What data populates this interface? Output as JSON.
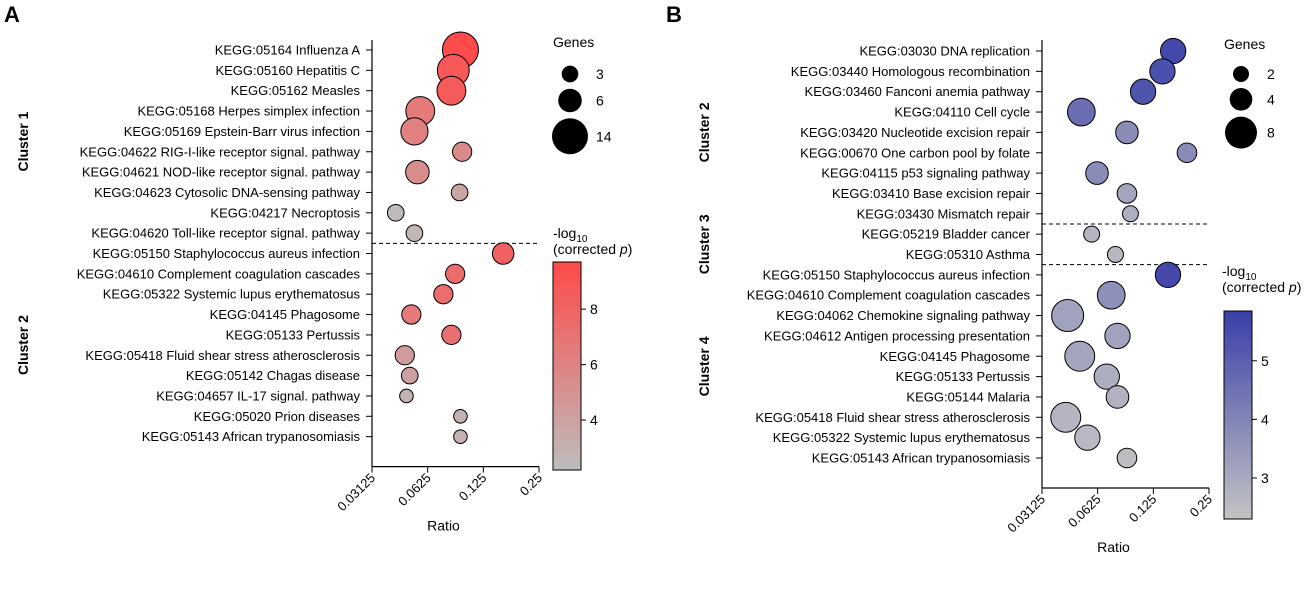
{
  "chart_data": [
    {
      "type": "scatter",
      "panel": "A",
      "xlabel": "Ratio",
      "x_scale": "log2",
      "xticks": [
        "0.03125",
        "0.0625",
        "0.125",
        "0.25"
      ],
      "xtick_values": [
        0.03125,
        0.0625,
        0.125,
        0.25
      ],
      "xlim": [
        0.03125,
        0.25
      ],
      "size_legend": {
        "title": "Genes",
        "values": [
          3,
          6,
          14
        ],
        "labels": [
          "3",
          "6",
          "14"
        ]
      },
      "color_legend": {
        "title_prefix": "-log",
        "title_sub": "10",
        "title_line2_prefix": "(corrected ",
        "title_line2_italic": "p",
        "title_line2_suffix": ")",
        "min": 2.2,
        "max": 9.7,
        "ticks": [
          4,
          6,
          8
        ],
        "tick_labels": [
          "4",
          "6",
          "8"
        ],
        "low_color": "#bdbdbd",
        "high_color": "#ff4a4a"
      },
      "clusters": [
        {
          "name": "Cluster 1",
          "terms": [
            {
              "label": "KEGG:05164 Influenza A",
              "ratio": 0.094,
              "genes": 14,
              "neglog10p": 9.6
            },
            {
              "label": "KEGG:05160 Hepatitis C",
              "ratio": 0.086,
              "genes": 11,
              "neglog10p": 8.8
            },
            {
              "label": "KEGG:05162 Measles",
              "ratio": 0.084,
              "genes": 9,
              "neglog10p": 8.6
            },
            {
              "label": "KEGG:05168 Herpes simplex infection",
              "ratio": 0.057,
              "genes": 9,
              "neglog10p": 6.6
            },
            {
              "label": "KEGG:05169 Epstein-Barr virus infection",
              "ratio": 0.053,
              "genes": 8,
              "neglog10p": 6.2
            },
            {
              "label": "KEGG:04622 RIG-I-like receptor signal. pathway",
              "ratio": 0.096,
              "genes": 4,
              "neglog10p": 5.5
            },
            {
              "label": "KEGG:04621 NOD-like receptor signal. pathway",
              "ratio": 0.055,
              "genes": 6,
              "neglog10p": 5.3
            },
            {
              "label": "KEGG:04623 Cytosolic DNA-sensing pathway",
              "ratio": 0.093,
              "genes": 3,
              "neglog10p": 3.8
            },
            {
              "label": "KEGG:04217 Necroptosis",
              "ratio": 0.042,
              "genes": 3,
              "neglog10p": 2.4
            },
            {
              "label": "KEGG:04620 Toll-like receptor signal. pathway",
              "ratio": 0.053,
              "genes": 3,
              "neglog10p": 2.6
            }
          ]
        },
        {
          "name": "Cluster 2",
          "terms": [
            {
              "label": "KEGG:05150 Staphylococcus aureus infection",
              "ratio": 0.16,
              "genes": 5,
              "neglog10p": 8.2
            },
            {
              "label": "KEGG:04610 Complement coagulation cascades",
              "ratio": 0.088,
              "genes": 4,
              "neglog10p": 7.5
            },
            {
              "label": "KEGG:05322 Systemic lupus erythematosus",
              "ratio": 0.076,
              "genes": 4,
              "neglog10p": 7.4
            },
            {
              "label": "KEGG:04145 Phagosome",
              "ratio": 0.051,
              "genes": 4,
              "neglog10p": 6.6
            },
            {
              "label": "KEGG:05133 Pertussis",
              "ratio": 0.084,
              "genes": 4,
              "neglog10p": 7.2
            },
            {
              "label": "KEGG:05418 Fluid shear stress atherosclerosis",
              "ratio": 0.047,
              "genes": 4,
              "neglog10p": 4.4
            },
            {
              "label": "KEGG:05142 Chagas disease",
              "ratio": 0.05,
              "genes": 3,
              "neglog10p": 4.0
            },
            {
              "label": "KEGG:04657 IL-17 signal. pathway",
              "ratio": 0.048,
              "genes": 2,
              "neglog10p": 3.0
            },
            {
              "label": "KEGG:05020 Prion diseases",
              "ratio": 0.094,
              "genes": 2,
              "neglog10p": 3.0
            },
            {
              "label": "KEGG:05143 African trypanosomiasis",
              "ratio": 0.094,
              "genes": 2,
              "neglog10p": 3.0
            }
          ]
        }
      ]
    },
    {
      "type": "scatter",
      "panel": "B",
      "xlabel": "Ratio",
      "x_scale": "log2",
      "xticks": [
        "0.03125",
        "0.0625",
        "0.125",
        "0.25"
      ],
      "xtick_values": [
        0.03125,
        0.0625,
        0.125,
        0.25
      ],
      "xlim": [
        0.03125,
        0.25
      ],
      "size_legend": {
        "title": "Genes",
        "values": [
          2,
          4,
          8
        ],
        "labels": [
          "2",
          "4",
          "8"
        ]
      },
      "color_legend": {
        "title_prefix": "-log",
        "title_sub": "10",
        "title_line2_prefix": "(corrected ",
        "title_line2_italic": "p",
        "title_line2_suffix": ")",
        "min": 2.3,
        "max": 5.85,
        "ticks": [
          3,
          4,
          5
        ],
        "tick_labels": [
          "3",
          "4",
          "5"
        ],
        "low_color": "#c4c4c4",
        "high_color": "#3a3fa8"
      },
      "clusters": [
        {
          "name": "Cluster 2",
          "terms": [
            {
              "label": "KEGG:03030 DNA replication",
              "ratio": 0.16,
              "genes": 5,
              "neglog10p": 5.6
            },
            {
              "label": "KEGG:03440 Homologous recombination",
              "ratio": 0.14,
              "genes": 5,
              "neglog10p": 5.4
            },
            {
              "label": "KEGG:03460 Fanconi anemia pathway",
              "ratio": 0.11,
              "genes": 5,
              "neglog10p": 5.3
            },
            {
              "label": "KEGG:04110 Cell cycle",
              "ratio": 0.051,
              "genes": 6,
              "neglog10p": 4.6
            },
            {
              "label": "KEGG:03420 Nucleotide excision repair",
              "ratio": 0.09,
              "genes": 4,
              "neglog10p": 3.8
            },
            {
              "label": "KEGG:00670 One carbon pool by folate",
              "ratio": 0.19,
              "genes": 3,
              "neglog10p": 3.8
            },
            {
              "label": "KEGG:04115 p53 signaling pathway",
              "ratio": 0.062,
              "genes": 4,
              "neglog10p": 3.8
            },
            {
              "label": "KEGG:03410 Base excision repair",
              "ratio": 0.09,
              "genes": 3,
              "neglog10p": 3.1
            },
            {
              "label": "KEGG:03430 Mismatch repair",
              "ratio": 0.094,
              "genes": 2,
              "neglog10p": 2.9
            }
          ]
        },
        {
          "name": "Cluster 3",
          "terms": [
            {
              "label": "KEGG:05219 Bladder cancer",
              "ratio": 0.058,
              "genes": 2,
              "neglog10p": 2.7
            },
            {
              "label": "KEGG:05310 Asthma",
              "ratio": 0.078,
              "genes": 2,
              "neglog10p": 2.6
            }
          ]
        },
        {
          "name": "Cluster 4",
          "terms": [
            {
              "label": "KEGG:05150 Staphylococcus aureus infection",
              "ratio": 0.15,
              "genes": 5,
              "neglog10p": 5.6
            },
            {
              "label": "KEGG:04610 Complement coagulation cascades",
              "ratio": 0.074,
              "genes": 6,
              "neglog10p": 3.7
            },
            {
              "label": "KEGG:04062 Chemokine signaling pathway",
              "ratio": 0.043,
              "genes": 8,
              "neglog10p": 3.2
            },
            {
              "label": "KEGG:04612 Antigen processing presentation",
              "ratio": 0.08,
              "genes": 5,
              "neglog10p": 3.2
            },
            {
              "label": "KEGG:04145 Phagosome",
              "ratio": 0.05,
              "genes": 7,
              "neglog10p": 3.1
            },
            {
              "label": "KEGG:05133 Pertussis",
              "ratio": 0.07,
              "genes": 5,
              "neglog10p": 2.9
            },
            {
              "label": "KEGG:05144 Malaria",
              "ratio": 0.08,
              "genes": 4,
              "neglog10p": 2.8
            },
            {
              "label": "KEGG:05418 Fluid shear stress atherosclerosis",
              "ratio": 0.042,
              "genes": 7,
              "neglog10p": 2.7
            },
            {
              "label": "KEGG:05322 Systemic lupus erythematosus",
              "ratio": 0.055,
              "genes": 5,
              "neglog10p": 2.6
            },
            {
              "label": "KEGG:05143 African trypanosomiasis",
              "ratio": 0.09,
              "genes": 3,
              "neglog10p": 2.5
            }
          ]
        }
      ]
    }
  ]
}
